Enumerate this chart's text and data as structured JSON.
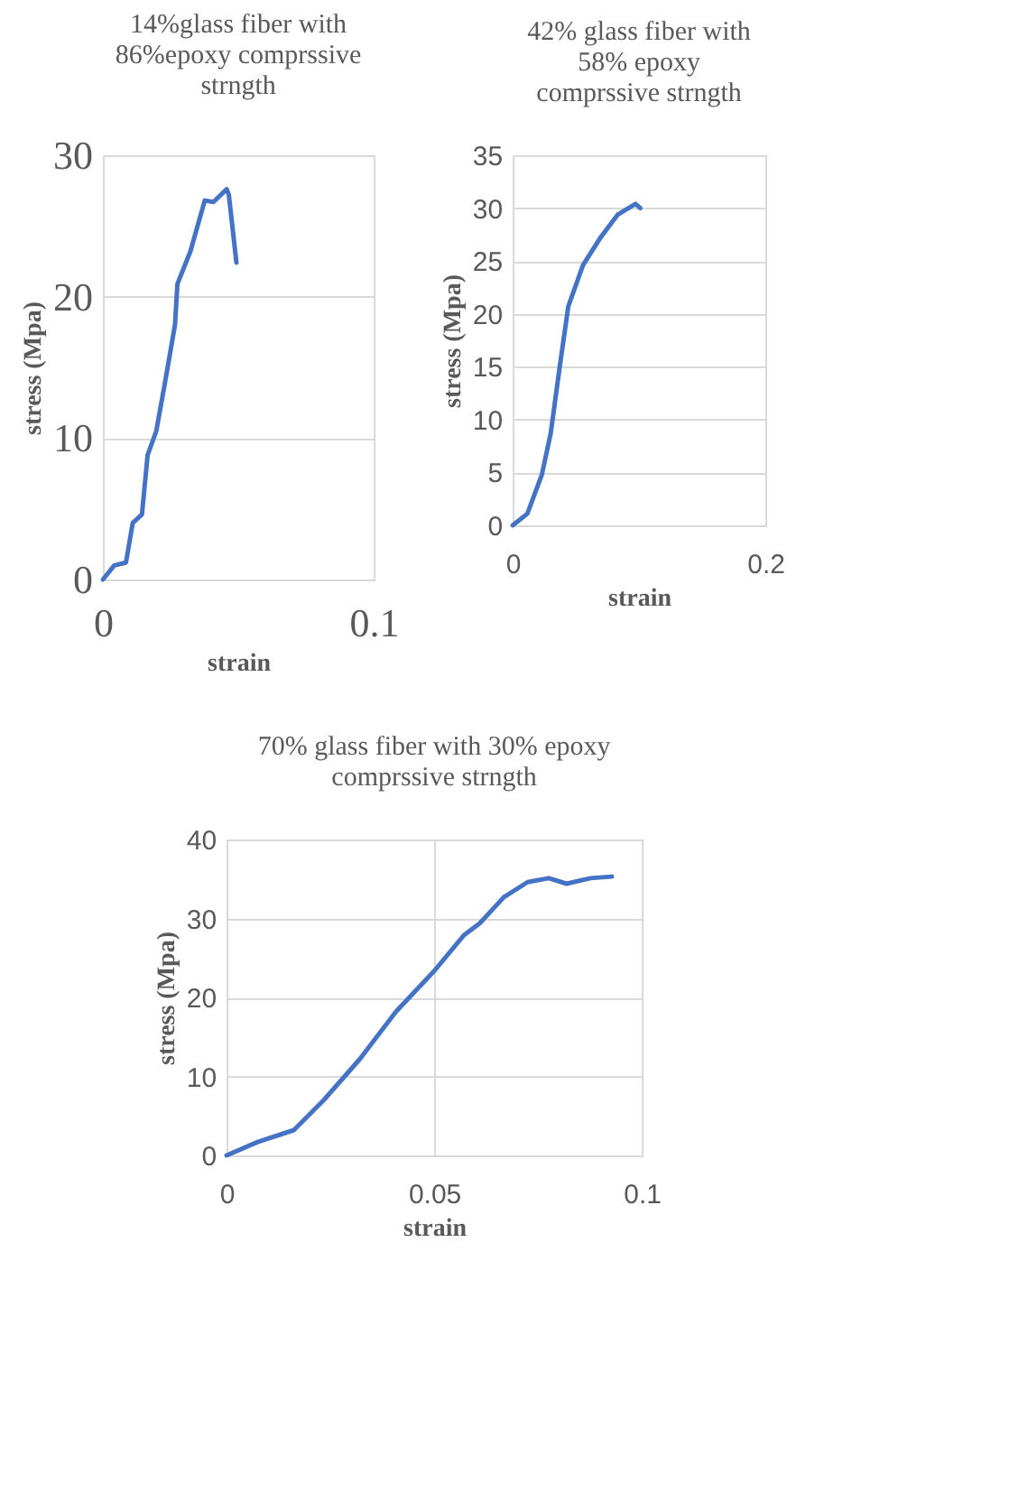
{
  "chart_data": [
    {
      "type": "line",
      "title": "14%glass fiber with\n86%epoxy comprssive\nstrngth",
      "xlabel": "strain",
      "ylabel": "stress (Mpa)",
      "xlim": [
        0,
        0.1
      ],
      "xticks": [
        0,
        0.1
      ],
      "ylim": [
        0,
        30
      ],
      "yticks": [
        0,
        10,
        20,
        30
      ],
      "grid": "y",
      "marker": "none",
      "line_style": "solid",
      "series": [
        {
          "color": "#4472c4",
          "x": [
            0,
            0.0042,
            0.0085,
            0.011,
            0.0144,
            0.0165,
            0.0197,
            0.0228,
            0.0266,
            0.0275,
            0.0323,
            0.0376,
            0.0408,
            0.0457,
            0.0465,
            0.0493
          ],
          "values": [
            0,
            1.0,
            1.2,
            4.0,
            4.6,
            8.8,
            10.5,
            13.8,
            18,
            20.9,
            23.2,
            26.8,
            26.7,
            27.6,
            27.2,
            22.4
          ]
        }
      ]
    },
    {
      "type": "line",
      "title": "42% glass fiber with\n58% epoxy\ncomprssive strngth",
      "xlabel": "strain",
      "ylabel": "stress (Mpa)",
      "xlim": [
        0,
        0.2
      ],
      "xticks": [
        0,
        0.2
      ],
      "ylim": [
        0,
        35
      ],
      "yticks": [
        0,
        5,
        10,
        15,
        20,
        25,
        30,
        35
      ],
      "grid": "y",
      "marker": "none",
      "line_style": "solid",
      "series": [
        {
          "color": "#4472c4",
          "x": [
            0,
            0.0116,
            0.0231,
            0.0301,
            0.037,
            0.044,
            0.0556,
            0.0694,
            0.0833,
            0.0972,
            0.101
          ],
          "values": [
            0,
            1.1,
            4.8,
            8.7,
            14.8,
            20.7,
            24.6,
            27.2,
            29.4,
            30.4,
            30.0
          ]
        }
      ]
    },
    {
      "type": "line",
      "title": "70% glass fiber with 30% epoxy\ncomprssive strngth",
      "xlabel": "strain",
      "ylabel": "stress (Mpa)",
      "xlim": [
        0,
        0.1
      ],
      "xticks": [
        0,
        0.05,
        0.1
      ],
      "ylim": [
        0,
        40
      ],
      "yticks": [
        0,
        10,
        20,
        30,
        40
      ],
      "grid": true,
      "marker": "none",
      "line_style": "solid",
      "series": [
        {
          "color": "#4472c4",
          "x": [
            0,
            0.0075,
            0.0162,
            0.0234,
            0.0321,
            0.0408,
            0.0501,
            0.0572,
            0.061,
            0.0668,
            0.0725,
            0.0776,
            0.0819,
            0.0877,
            0.0928
          ],
          "values": [
            0,
            1.7,
            3.2,
            7.0,
            12.2,
            18.2,
            23.4,
            27.9,
            29.4,
            32.7,
            34.6,
            35.1,
            34.4,
            35.1,
            35.3
          ]
        }
      ]
    }
  ]
}
